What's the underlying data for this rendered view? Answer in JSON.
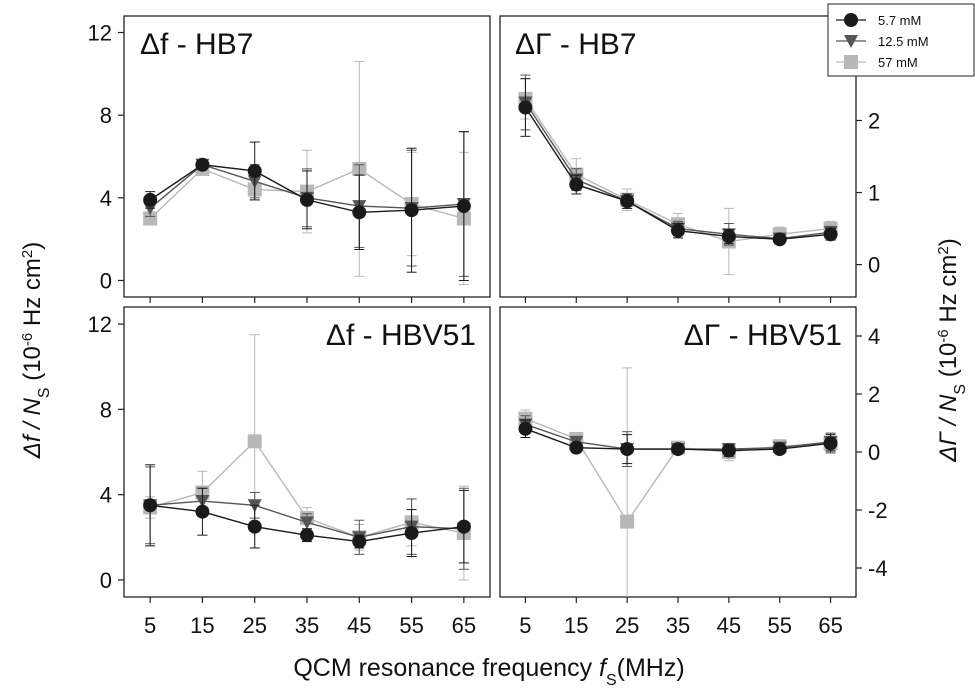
{
  "figure": {
    "xlabel": "QCM resonance frequency",
    "xlabel_symbol": "f",
    "xlabel_sub": "S",
    "xlabel_unit": "(MHz)",
    "ylabel_left": "Δf / N",
    "ylabel_left_sub": "S",
    "ylabel_left_unit_pre": " (10",
    "ylabel_left_exp": "-6",
    "ylabel_left_unit_post": " Hz cm",
    "ylabel_left_unit_exp": "2",
    "ylabel_left_close": ")",
    "ylabel_right": "ΔΓ / N",
    "ylabel_right_sub": "S",
    "ylabel_right_unit_pre": " (10",
    "ylabel_right_exp": "-6",
    "ylabel_right_unit_post": " Hz cm",
    "ylabel_right_unit_exp": "2",
    "ylabel_right_close": ")"
  },
  "legend": {
    "placement": "top-right",
    "entries": [
      {
        "label": "5.7 mM",
        "marker": "circle",
        "color": "#1a1a1a",
        "line": "#1a1a1a"
      },
      {
        "label": "12.5 mM",
        "marker": "triangle-down",
        "color": "#555555",
        "line": "#555555"
      },
      {
        "label": "57 mM",
        "marker": "square",
        "color": "#b8b8b8",
        "line": "#b8b8b8"
      }
    ]
  },
  "chart_data": [
    {
      "type": "line",
      "title": "Δf - HB7",
      "x": [
        5,
        15,
        25,
        35,
        45,
        55,
        65
      ],
      "x_ticks": [
        "5",
        "15",
        "25",
        "35",
        "45",
        "55",
        "65"
      ],
      "ylim": [
        -0.8,
        12.8
      ],
      "y_ticks": [
        0,
        4,
        8,
        12
      ],
      "series": [
        {
          "name": "5.7 mM",
          "values": [
            3.9,
            5.6,
            5.3,
            3.9,
            3.3,
            3.4,
            3.6
          ],
          "err": [
            0.4,
            0.2,
            1.4,
            1.4,
            1.8,
            3.0,
            3.6
          ]
        },
        {
          "name": "12.5 mM",
          "values": [
            3.5,
            5.6,
            4.8,
            4.0,
            3.6,
            3.5,
            3.7
          ],
          "err": [
            0.4,
            0.2,
            0.8,
            1.4,
            2.0,
            2.8,
            3.5
          ]
        },
        {
          "name": "57 mM",
          "values": [
            3.0,
            5.4,
            4.4,
            4.3,
            5.4,
            3.7,
            3.0
          ],
          "err": [
            0.3,
            0.3,
            0.5,
            2.0,
            5.2,
            2.5,
            3.2
          ]
        }
      ]
    },
    {
      "type": "line",
      "title": "ΔΓ - HB7",
      "x": [
        5,
        15,
        25,
        35,
        45,
        55,
        65
      ],
      "x_ticks": [
        "5",
        "15",
        "25",
        "35",
        "45",
        "55",
        "65"
      ],
      "ylim": [
        -0.45,
        3.45
      ],
      "y_ticks": [
        0,
        1,
        2
      ],
      "series": [
        {
          "name": "5.7 mM",
          "values": [
            2.18,
            1.11,
            0.88,
            0.47,
            0.39,
            0.35,
            0.42
          ],
          "err": [
            0.4,
            0.13,
            0.1,
            0.1,
            0.1,
            0.06,
            0.08
          ]
        },
        {
          "name": "12.5 mM",
          "values": [
            2.25,
            1.18,
            0.88,
            0.5,
            0.42,
            0.36,
            0.45
          ],
          "err": [
            0.38,
            0.15,
            0.1,
            0.1,
            0.15,
            0.06,
            0.08
          ]
        },
        {
          "name": "57 mM",
          "values": [
            2.3,
            1.25,
            0.9,
            0.56,
            0.32,
            0.42,
            0.5
          ],
          "err": [
            0.28,
            0.22,
            0.15,
            0.15,
            0.46,
            0.1,
            0.1
          ]
        }
      ]
    },
    {
      "type": "line",
      "title": "Δf - HBV51",
      "x": [
        5,
        15,
        25,
        35,
        45,
        55,
        65
      ],
      "x_ticks": [
        "5",
        "15",
        "25",
        "35",
        "45",
        "55",
        "65"
      ],
      "ylim": [
        -0.8,
        12.8
      ],
      "y_ticks": [
        0,
        4,
        8,
        12
      ],
      "series": [
        {
          "name": "5.7 mM",
          "values": [
            3.5,
            3.2,
            2.5,
            2.1,
            1.8,
            2.2,
            2.5
          ],
          "err": [
            1.9,
            1.1,
            1.0,
            0.3,
            0.3,
            1.1,
            1.7
          ]
        },
        {
          "name": "12.5 mM",
          "values": [
            3.5,
            3.7,
            3.5,
            2.7,
            2.0,
            2.5,
            2.4
          ],
          "err": [
            1.8,
            0.6,
            0.6,
            0.4,
            0.8,
            1.3,
            1.9
          ]
        },
        {
          "name": "57 mM",
          "values": [
            3.4,
            4.1,
            6.5,
            2.9,
            2.0,
            2.7,
            2.2
          ],
          "err": [
            0.5,
            1.0,
            5.0,
            0.5,
            0.6,
            1.1,
            2.2
          ]
        }
      ]
    },
    {
      "type": "line",
      "title": "ΔΓ - HBV51",
      "x": [
        5,
        15,
        25,
        35,
        45,
        55,
        65
      ],
      "x_ticks": [
        "5",
        "15",
        "25",
        "35",
        "45",
        "55",
        "65"
      ],
      "ylim": [
        -5.0,
        5.0
      ],
      "y_ticks": [
        -4,
        -2,
        0,
        2,
        4
      ],
      "series": [
        {
          "name": "5.7 mM",
          "values": [
            0.8,
            0.15,
            0.1,
            0.1,
            0.05,
            0.1,
            0.3
          ],
          "err": [
            0.3,
            0.15,
            0.5,
            0.1,
            0.2,
            0.15,
            0.3
          ]
        },
        {
          "name": "12.5 mM",
          "values": [
            0.95,
            0.35,
            0.1,
            0.1,
            0.1,
            0.15,
            0.35
          ],
          "err": [
            0.3,
            0.15,
            0.6,
            0.1,
            0.15,
            0.15,
            0.3
          ]
        },
        {
          "name": "57 mM",
          "values": [
            1.15,
            0.45,
            -2.4,
            0.15,
            0.0,
            0.2,
            0.3
          ],
          "err": [
            0.3,
            0.2,
            5.3,
            0.1,
            0.3,
            0.15,
            0.35
          ]
        }
      ]
    }
  ]
}
